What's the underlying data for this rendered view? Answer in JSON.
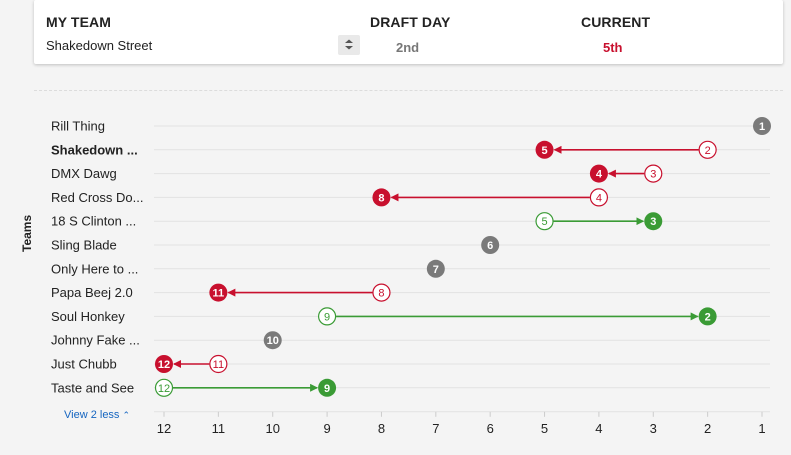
{
  "header": {
    "my_team_label": "MY TEAM",
    "draft_day_label": "DRAFT DAY",
    "current_label": "CURRENT",
    "team_name": "Shakedown Street",
    "draft_day_value": "2nd",
    "current_value": "5th",
    "stepper_icon": "up-down-chevron-icon"
  },
  "colors": {
    "improved": "#3a9b35",
    "declined": "#c8102e",
    "unchanged": "#7a7a7a",
    "link": "#1565c0"
  },
  "view_less_label": "View 2 less",
  "chart_data": {
    "type": "dot-arrow",
    "ylabel": "Teams",
    "xlabel": "",
    "x_ticks": [
      12,
      11,
      10,
      9,
      8,
      7,
      6,
      5,
      4,
      3,
      2,
      1
    ],
    "xlim": [
      12,
      1
    ],
    "grid": true,
    "series_fields": [
      "team",
      "draft_day_rank",
      "current_rank"
    ],
    "teams": [
      {
        "team": "Rill Thing",
        "draft_day_rank": 1,
        "current_rank": 1,
        "bold": false
      },
      {
        "team": "Shakedown ...",
        "draft_day_rank": 2,
        "current_rank": 5,
        "bold": true
      },
      {
        "team": "DMX Dawg",
        "draft_day_rank": 3,
        "current_rank": 4,
        "bold": false
      },
      {
        "team": "Red Cross Do...",
        "draft_day_rank": 4,
        "current_rank": 8,
        "bold": false
      },
      {
        "team": "18 S Clinton ...",
        "draft_day_rank": 5,
        "current_rank": 3,
        "bold": false
      },
      {
        "team": "Sling Blade",
        "draft_day_rank": 6,
        "current_rank": 6,
        "bold": false
      },
      {
        "team": "Only Here to ...",
        "draft_day_rank": 7,
        "current_rank": 7,
        "bold": false
      },
      {
        "team": "Papa Beej 2.0",
        "draft_day_rank": 8,
        "current_rank": 11,
        "bold": false
      },
      {
        "team": "Soul Honkey",
        "draft_day_rank": 9,
        "current_rank": 2,
        "bold": false
      },
      {
        "team": "Johnny Fake ...",
        "draft_day_rank": 10,
        "current_rank": 10,
        "bold": false
      },
      {
        "team": "Just Chubb",
        "draft_day_rank": 11,
        "current_rank": 12,
        "bold": false
      },
      {
        "team": "Taste and See",
        "draft_day_rank": 12,
        "current_rank": 9,
        "bold": false
      }
    ]
  }
}
